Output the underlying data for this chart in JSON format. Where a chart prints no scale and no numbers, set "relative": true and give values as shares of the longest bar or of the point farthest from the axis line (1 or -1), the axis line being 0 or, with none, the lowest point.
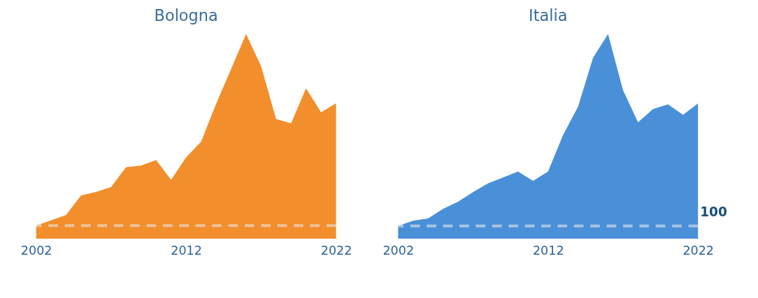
{
  "chart_data": [
    {
      "type": "area",
      "title": "Bologna",
      "relative": true,
      "xlim": [
        2002,
        2022
      ],
      "xticks": [
        2002,
        2012,
        2022
      ],
      "x": [
        2002,
        2003,
        2004,
        2005,
        2006,
        2007,
        2008,
        2009,
        2010,
        2011,
        2012,
        2013,
        2014,
        2015,
        2016,
        2017,
        2018,
        2019,
        2020,
        2021,
        2022
      ],
      "series": [
        {
          "color": "#f28e2b",
          "values": [
            0.061,
            0.087,
            0.113,
            0.209,
            0.226,
            0.25,
            0.347,
            0.355,
            0.382,
            0.285,
            0.395,
            0.472,
            0.657,
            0.828,
            1.0,
            0.842,
            0.583,
            0.562,
            0.734,
            0.616,
            0.66
          ]
        }
      ],
      "ref_lines": [
        {
          "axis": "y",
          "value": 0.061,
          "color": "#e8e8e8",
          "line_style": "dashed"
        }
      ]
    },
    {
      "type": "area",
      "title": "Italia",
      "relative": true,
      "xlim": [
        2002,
        2022
      ],
      "xticks": [
        2002,
        2012,
        2022
      ],
      "x": [
        2002,
        2003,
        2004,
        2005,
        2006,
        2007,
        2008,
        2009,
        2010,
        2011,
        2012,
        2013,
        2014,
        2015,
        2016,
        2017,
        2018,
        2019,
        2020,
        2021,
        2022
      ],
      "series": [
        {
          "color": "#4a90d9",
          "values": [
            0.059,
            0.085,
            0.096,
            0.143,
            0.178,
            0.225,
            0.268,
            0.297,
            0.326,
            0.28,
            0.326,
            0.505,
            0.643,
            0.883,
            1.0,
            0.724,
            0.567,
            0.632,
            0.655,
            0.604,
            0.659
          ]
        }
      ],
      "ref_lines": [
        {
          "axis": "y",
          "value": 0.059,
          "color": "#e8e8e8",
          "line_style": "dashed"
        }
      ],
      "annotations": [
        "100"
      ]
    }
  ]
}
